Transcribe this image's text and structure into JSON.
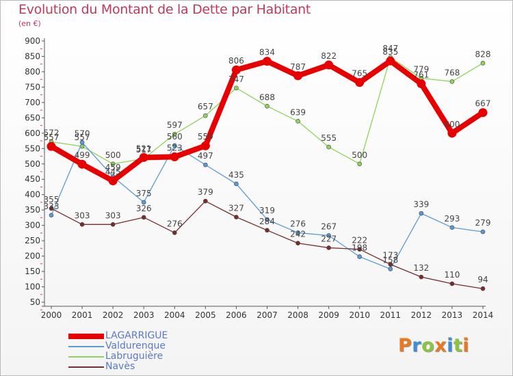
{
  "title": "Evolution du Montant de la Dette par Habitant",
  "subtitle": "(en €)",
  "logo": {
    "text": "Proxiti",
    "colors": [
      "#e8791e",
      "#3b8fd6",
      "#8bc53f",
      "#e8791e",
      "#3b8fd6",
      "#8bc53f",
      "#e8791e"
    ]
  },
  "chart_data": {
    "type": "line",
    "title": "Evolution du Montant de la Dette par Habitant",
    "subtitle": "(en €)",
    "xlabel": "",
    "ylabel": "",
    "x": [
      "2000",
      "2001",
      "2002",
      "2003",
      "2004",
      "2005",
      "2006",
      "2007",
      "2008",
      "2009",
      "2010",
      "2011",
      "2012",
      "2013",
      "2014"
    ],
    "ylim": [
      50,
      900
    ],
    "yticks": [
      50,
      100,
      150,
      200,
      250,
      300,
      350,
      400,
      450,
      500,
      550,
      600,
      650,
      700,
      750,
      800,
      850,
      900
    ],
    "grid": false,
    "legend_position": "bottom-left",
    "series": [
      {
        "name": "LAGARRIGUE",
        "color": "#e80000",
        "values": [
          557,
          499,
          445,
          521,
          523,
          559,
          806,
          834,
          787,
          822,
          765,
          835,
          761,
          600,
          667
        ],
        "labels": [
          "557",
          "499",
          "445",
          "521",
          "523",
          "559",
          "806",
          "834",
          "787",
          "822",
          "765",
          "835",
          "761",
          "600",
          "667"
        ]
      },
      {
        "name": "Valdurenque",
        "color": "#5b9bd5",
        "values": [
          333,
          570,
          459,
          375,
          560,
          497,
          435,
          319,
          276,
          267,
          198,
          158,
          339,
          293,
          279
        ],
        "labels": [
          "333",
          "570",
          "459",
          "375",
          "560",
          "497",
          "435",
          "319",
          "276",
          "267",
          "198",
          "158",
          "339",
          "293",
          "279"
        ]
      },
      {
        "name": "Labruguière",
        "color": "#8fd35a",
        "values": [
          572,
          557,
          500,
          517,
          597,
          657,
          747,
          688,
          639,
          555,
          500,
          847,
          779,
          768,
          828
        ],
        "labels": [
          "572",
          "557",
          "500",
          "517",
          "597",
          "657",
          "747",
          "688",
          "639",
          "555",
          "500",
          "847",
          "779",
          "768",
          "828"
        ]
      },
      {
        "name": "Navès",
        "color": "#7a2b2b",
        "values": [
          355,
          303,
          303,
          326,
          276,
          379,
          327,
          284,
          242,
          227,
          222,
          173,
          132,
          110,
          94
        ],
        "labels": [
          "355",
          "303",
          "303",
          "326",
          "276",
          "379",
          "327",
          "284",
          "242",
          "227",
          "222",
          "173",
          "132",
          "110",
          "94"
        ]
      }
    ]
  }
}
